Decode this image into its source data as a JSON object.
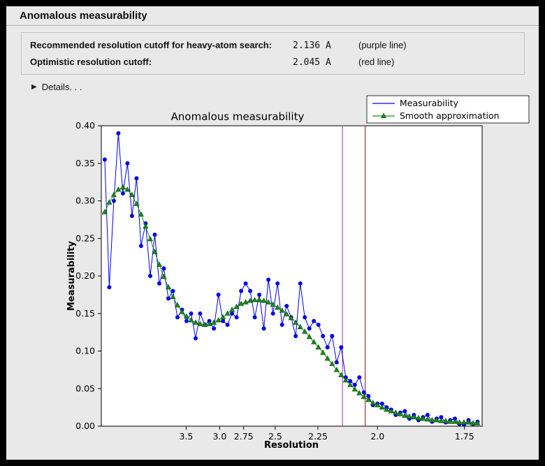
{
  "panel": {
    "title": "Anomalous measurability",
    "info": [
      {
        "label": "Recommended resolution cutoff for heavy-atom search:",
        "value": "2.136 A",
        "note": "(purple line)"
      },
      {
        "label": "Optimistic resolution cutoff:",
        "value": "2.045 A",
        "note": "(red line)"
      }
    ],
    "details": {
      "icon": "▶",
      "label": "Details. . ."
    }
  },
  "chart_data": {
    "type": "line",
    "title": "Anomalous measurability",
    "xlabel": "Resolution",
    "ylabel": "Measurability",
    "x_axis_scale": "1/d^2 (resolution in Angstrom decreasing to the right)",
    "xlim": [
      0.007,
      0.342
    ],
    "ylim": [
      0.0,
      0.4
    ],
    "grid": false,
    "yticks": [
      {
        "label": "0.00",
        "value": 0.0
      },
      {
        "label": "0.05",
        "value": 0.05
      },
      {
        "label": "0.10",
        "value": 0.1
      },
      {
        "label": "0.15",
        "value": 0.15
      },
      {
        "label": "0.20",
        "value": 0.2
      },
      {
        "label": "0.25",
        "value": 0.25
      },
      {
        "label": "0.30",
        "value": 0.3
      },
      {
        "label": "0.35",
        "value": 0.35
      },
      {
        "label": "0.40",
        "value": 0.4
      }
    ],
    "xticks": [
      {
        "label": "3.5",
        "s": 0.08163
      },
      {
        "label": "3.0",
        "s": 0.11111
      },
      {
        "label": "2.75",
        "s": 0.13223
      },
      {
        "label": "2.5",
        "s": 0.16
      },
      {
        "label": "2.25",
        "s": 0.19753
      },
      {
        "label": "2.0",
        "s": 0.25
      },
      {
        "label": "1.75",
        "s": 0.32653
      }
    ],
    "x_s": [
      0.01,
      0.014,
      0.018,
      0.022,
      0.026,
      0.03,
      0.034,
      0.038,
      0.042,
      0.046,
      0.05,
      0.054,
      0.058,
      0.062,
      0.066,
      0.07,
      0.074,
      0.078,
      0.082,
      0.086,
      0.09,
      0.094,
      0.098,
      0.102,
      0.106,
      0.11,
      0.114,
      0.118,
      0.122,
      0.126,
      0.13,
      0.134,
      0.138,
      0.142,
      0.146,
      0.15,
      0.154,
      0.158,
      0.162,
      0.166,
      0.17,
      0.174,
      0.178,
      0.182,
      0.186,
      0.19,
      0.194,
      0.198,
      0.202,
      0.206,
      0.21,
      0.214,
      0.218,
      0.222,
      0.226,
      0.23,
      0.234,
      0.238,
      0.242,
      0.246,
      0.25,
      0.254,
      0.258,
      0.262,
      0.266,
      0.27,
      0.274,
      0.278,
      0.282,
      0.286,
      0.29,
      0.294,
      0.298,
      0.302,
      0.306,
      0.31,
      0.314,
      0.318,
      0.322,
      0.326,
      0.33,
      0.334,
      0.338
    ],
    "series": [
      {
        "name": "Measurability",
        "color": "#0000ee",
        "marker": "circle",
        "values": [
          0.355,
          0.185,
          0.3,
          0.39,
          0.31,
          0.35,
          0.28,
          0.33,
          0.24,
          0.27,
          0.2,
          0.255,
          0.19,
          0.21,
          0.17,
          0.18,
          0.145,
          0.155,
          0.14,
          0.15,
          0.117,
          0.15,
          0.135,
          0.14,
          0.13,
          0.175,
          0.14,
          0.135,
          0.15,
          0.145,
          0.18,
          0.19,
          0.18,
          0.145,
          0.175,
          0.13,
          0.195,
          0.15,
          0.19,
          0.135,
          0.16,
          0.145,
          0.12,
          0.19,
          0.145,
          0.13,
          0.14,
          0.135,
          0.12,
          0.105,
          0.12,
          0.085,
          0.105,
          0.065,
          0.06,
          0.055,
          0.065,
          0.045,
          0.04,
          0.028,
          0.03,
          0.03,
          0.025,
          0.022,
          0.015,
          0.018,
          0.02,
          0.01,
          0.015,
          0.008,
          0.012,
          0.015,
          0.006,
          0.01,
          0.012,
          0.005,
          0.008,
          0.01,
          0.003,
          0.002,
          0.008,
          0.003,
          0.006
        ]
      },
      {
        "name": "Smooth approximation",
        "color": "#1e8c1e",
        "edge": "#0e5c0e",
        "marker": "triangle",
        "values": [
          0.285,
          0.298,
          0.308,
          0.315,
          0.318,
          0.315,
          0.308,
          0.296,
          0.282,
          0.266,
          0.249,
          0.232,
          0.215,
          0.199,
          0.185,
          0.172,
          0.161,
          0.152,
          0.146,
          0.141,
          0.138,
          0.136,
          0.135,
          0.136,
          0.138,
          0.141,
          0.145,
          0.15,
          0.155,
          0.159,
          0.163,
          0.165,
          0.167,
          0.168,
          0.168,
          0.167,
          0.165,
          0.162,
          0.158,
          0.154,
          0.149,
          0.144,
          0.138,
          0.132,
          0.126,
          0.119,
          0.112,
          0.105,
          0.098,
          0.09,
          0.083,
          0.075,
          0.068,
          0.061,
          0.055,
          0.049,
          0.044,
          0.039,
          0.035,
          0.031,
          0.028,
          0.025,
          0.022,
          0.02,
          0.018,
          0.016,
          0.014,
          0.013,
          0.012,
          0.011,
          0.01,
          0.009,
          0.008,
          0.008,
          0.007,
          0.007,
          0.006,
          0.006,
          0.005,
          0.005,
          0.005,
          0.004,
          0.004
        ]
      }
    ],
    "vlines": [
      {
        "name": "recommended-cutoff-line",
        "resolution_A": 2.136,
        "s": 0.21919,
        "color": "#b050b0"
      },
      {
        "name": "optimistic-cutoff-line",
        "resolution_A": 2.045,
        "s": 0.23913,
        "color": "#a0352b"
      }
    ],
    "legend": {
      "position": "top-right"
    }
  }
}
